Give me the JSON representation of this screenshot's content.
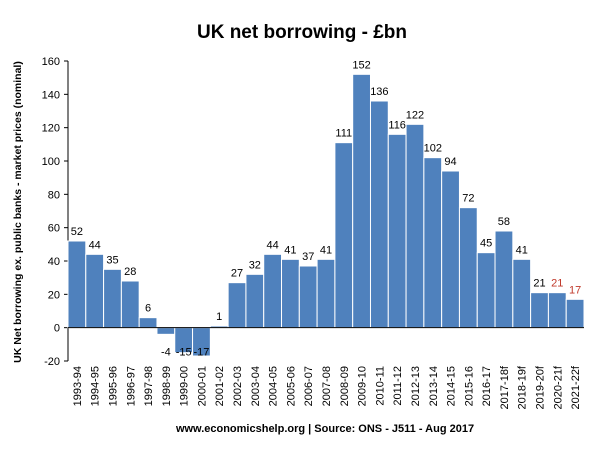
{
  "chart_data": {
    "type": "bar",
    "title": "UK net borrowing - £bn",
    "xlabel": "",
    "ylabel": "UK Net borrowing ex. public banks - market prices (nominal)",
    "ylim": [
      -20,
      160
    ],
    "yticks": [
      -20,
      0,
      20,
      40,
      60,
      80,
      100,
      120,
      140,
      160
    ],
    "grid": false,
    "legend": "none",
    "source": "www.economicshelp.org | Source: ONS - J511 - Aug 2017",
    "categories": [
      "1993-94",
      "1994-95",
      "1995-96",
      "1996-97",
      "1997-98",
      "1998-99",
      "1999-00",
      "2000-01",
      "2001-02",
      "2002-03",
      "2003-04",
      "2004-05",
      "2005-06",
      "2006-07",
      "2007-08",
      "2008-09",
      "2009-10",
      "2010-11",
      "2011-12",
      "2012-13",
      "2013-14",
      "2014-15",
      "2015-16",
      "2016-17",
      "2017-18f",
      "2018-19f",
      "2019-20f",
      "2020-21f",
      "2021-22f"
    ],
    "values": [
      52,
      44,
      35,
      28,
      6,
      -4,
      -15,
      -17,
      1,
      27,
      32,
      44,
      41,
      37,
      41,
      111,
      152,
      136,
      116,
      122,
      102,
      94,
      72,
      45,
      58,
      41,
      21,
      21,
      17
    ],
    "data_labels": [
      "52",
      "44",
      "35",
      "28",
      "6",
      "-4",
      "-15",
      "-17",
      "1",
      "27",
      "32",
      "44",
      "41",
      "37",
      "41",
      "111",
      "152",
      "136",
      "116",
      "122",
      "102",
      "94",
      "72",
      "45",
      "58",
      "41",
      "21",
      "21",
      "17"
    ],
    "highlighted_labels": [
      27,
      28
    ],
    "colors": {
      "bar": "#4f81bd",
      "bar_border": "#ffffff",
      "label": "#000000",
      "highlight_label": "#c0392b",
      "axis": "#000000"
    }
  }
}
